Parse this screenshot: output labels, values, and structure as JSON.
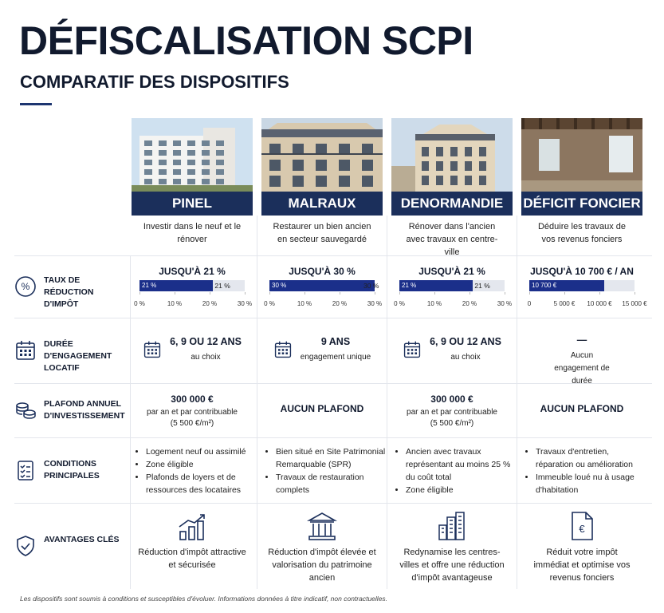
{
  "header": {
    "title": "DÉFISCALISATION SCPI",
    "subtitle": "COMPARATIF DES DISPOSITIFS"
  },
  "row_labels": [
    "TAUX DE RÉDUCTION D'IMPÔT",
    "DURÉE D'ENGAGEMENT LOCATIF",
    "PLAFOND ANNUEL D'INVESTISSEMENT",
    "CONDITIONS PRINCIPALES",
    "AVANTAGES CLÉS"
  ],
  "columns": [
    {
      "name": "PINEL",
      "description": "Investir dans le neuf et le rénover",
      "rate": {
        "label": "JUSQU'À 21 %",
        "value": 21,
        "value_label": "21 %",
        "end_label": "21 %",
        "xlim": [
          0,
          30
        ],
        "xticks": [
          {
            "value": 0,
            "label": "0 %"
          },
          {
            "value": 10,
            "label": "10 %"
          },
          {
            "value": 20,
            "label": "20 %"
          },
          {
            "value": 30,
            "label": "30 %"
          }
        ]
      },
      "duration": {
        "main": "6, 9 OU 12 ANS",
        "sub": "au choix",
        "icon": true
      },
      "ceiling": {
        "main": "300 000 €",
        "sub": [
          "par an et par contribuable",
          "(5 500 €/m²)"
        ]
      },
      "conditions": [
        "Logement neuf ou assimilé",
        "Zone éligible",
        "Plafonds de loyers et de ressources des locataires"
      ],
      "advantage": "Réduction d'impôt attractive et sécurisée"
    },
    {
      "name": "MALRAUX",
      "description": "Restaurer un bien ancien en secteur sauvegardé",
      "rate": {
        "label": "JUSQU'À 30 %",
        "value": 30,
        "value_label": "30 %",
        "end_label": "30 %",
        "xlim": [
          0,
          30
        ],
        "xticks": [
          {
            "value": 0,
            "label": "0 %"
          },
          {
            "value": 10,
            "label": "10 %"
          },
          {
            "value": 20,
            "label": "20 %"
          },
          {
            "value": 30,
            "label": "30 %"
          }
        ]
      },
      "duration": {
        "main": "9 ANS",
        "sub": "engagement unique",
        "icon": true
      },
      "ceiling": {
        "main": "AUCUN PLAFOND",
        "sub": []
      },
      "conditions": [
        "Bien situé en Site Patrimonial Remarquable (SPR)",
        "Travaux de restauration complets"
      ],
      "advantage": "Réduction d'impôt élevée et valorisation du patrimoine ancien"
    },
    {
      "name": "DENORMANDIE",
      "description": "Rénover dans l'ancien avec travaux en centre-ville",
      "rate": {
        "label": "JUSQU'À 21 %",
        "value": 21,
        "value_label": "21 %",
        "end_label": "21 %",
        "xlim": [
          0,
          30
        ],
        "xticks": [
          {
            "value": 0,
            "label": "0 %"
          },
          {
            "value": 10,
            "label": "10 %"
          },
          {
            "value": 20,
            "label": "20 %"
          },
          {
            "value": 30,
            "label": "30 %"
          }
        ]
      },
      "duration": {
        "main": "6, 9 OU 12 ANS",
        "sub": "au choix",
        "icon": true
      },
      "ceiling": {
        "main": "300 000 €",
        "sub": [
          "par an et par contribuable",
          "(5 500 €/m²)"
        ]
      },
      "conditions": [
        "Ancien avec travaux représentant au moins 25 % du coût total",
        "Zone éligible"
      ],
      "advantage": "Redynamise les centres-villes et offre une réduction d'impôt avantageuse"
    },
    {
      "name": "DÉFICIT FONCIER",
      "description": "Déduire les travaux de vos revenus fonciers",
      "rate": {
        "label": "JUSQU'À 10 700 € / AN",
        "value": 10700,
        "value_label": "10 700 €",
        "xlim": [
          0,
          15000
        ],
        "xticks": [
          {
            "value": 0,
            "label": "0"
          },
          {
            "value": 5000,
            "label": "5 000 €"
          },
          {
            "value": 10000,
            "label": "10 000 €"
          },
          {
            "value": 15000,
            "label": "15 000 €"
          }
        ]
      },
      "duration": {
        "main": "—",
        "sub": "Aucun engagement de durée",
        "icon": false
      },
      "ceiling": {
        "main": "AUCUN PLAFOND",
        "sub": []
      },
      "conditions": [
        "Travaux d'entretien, réparation ou amélioration",
        "Immeuble loué nu à usage d'habitation"
      ],
      "advantage": "Réduit votre impôt immédiat et optimise vos revenus fonciers"
    }
  ],
  "footnote": "Les dispositifs sont soumis à conditions et susceptibles d'évoluer. Informations données à titre indicatif, non contractuelles."
}
